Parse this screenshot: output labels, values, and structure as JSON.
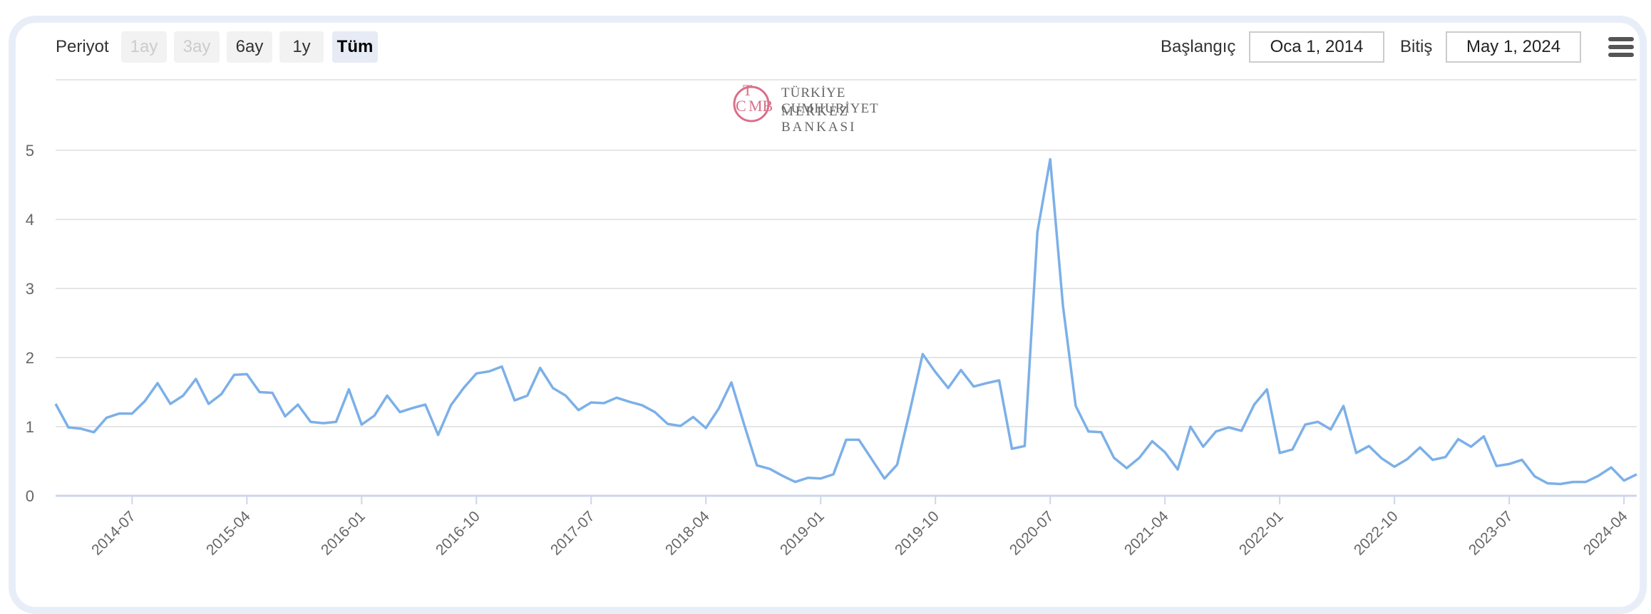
{
  "toolbar": {
    "period_label": "Periyot",
    "ranges": [
      {
        "label": "1ay",
        "state": "disabled"
      },
      {
        "label": "3ay",
        "state": "disabled"
      },
      {
        "label": "6ay",
        "state": "normal"
      },
      {
        "label": "1y",
        "state": "normal"
      },
      {
        "label": "Tüm",
        "state": "active"
      }
    ],
    "start_label": "Başlangıç",
    "start_value": "Oca 1, 2014",
    "end_label": "Bitiş",
    "end_value": "May 1, 2024",
    "menu_icon": "hamburger-menu-icon"
  },
  "logo": {
    "line1": "TÜRKİYE CUMHURİYET",
    "line2": "MERKEZ BANKASI",
    "emblem": "TCMB",
    "color": "#d9708a"
  },
  "colors": {
    "line": "#7cb0e8",
    "grid": "#e6e6e6",
    "axis": "#ccd6eb",
    "text": "#666666"
  },
  "chart_data": {
    "type": "line",
    "title": "",
    "xlabel": "",
    "ylabel": "",
    "ylim": [
      0,
      6
    ],
    "yticks": [
      0,
      1,
      2,
      3,
      4,
      5
    ],
    "xticks": [
      "2014-07",
      "2015-04",
      "2016-01",
      "2016-10",
      "2017-07",
      "2018-04",
      "2019-01",
      "2019-10",
      "2020-07",
      "2021-04",
      "2022-01",
      "2022-10",
      "2023-07",
      "2024-04"
    ],
    "grid": true,
    "legend": "none",
    "series": [
      {
        "x": [
          "2014-01",
          "2014-02",
          "2014-03",
          "2014-04",
          "2014-05",
          "2014-06",
          "2014-07",
          "2014-08",
          "2014-09",
          "2014-10",
          "2014-11",
          "2014-12",
          "2015-01",
          "2015-02",
          "2015-03",
          "2015-04",
          "2015-05",
          "2015-06",
          "2015-07",
          "2015-08",
          "2015-09",
          "2015-10",
          "2015-11",
          "2015-12",
          "2016-01",
          "2016-02",
          "2016-03",
          "2016-04",
          "2016-05",
          "2016-06",
          "2016-07",
          "2016-08",
          "2016-09",
          "2016-10",
          "2016-11",
          "2016-12",
          "2017-01",
          "2017-02",
          "2017-03",
          "2017-04",
          "2017-05",
          "2017-06",
          "2017-07",
          "2017-08",
          "2017-09",
          "2017-10",
          "2017-11",
          "2017-12",
          "2018-01",
          "2018-02",
          "2018-03",
          "2018-04",
          "2018-05",
          "2018-06",
          "2018-07",
          "2018-08",
          "2018-09",
          "2018-10",
          "2018-11",
          "2018-12",
          "2019-01",
          "2019-02",
          "2019-03",
          "2019-04",
          "2019-05",
          "2019-06",
          "2019-07",
          "2019-08",
          "2019-09",
          "2019-10",
          "2019-11",
          "2019-12",
          "2020-01",
          "2020-02",
          "2020-03",
          "2020-04",
          "2020-05",
          "2020-06",
          "2020-07",
          "2020-08",
          "2020-09",
          "2020-10",
          "2020-11",
          "2020-12",
          "2021-01",
          "2021-02",
          "2021-03",
          "2021-04",
          "2021-05",
          "2021-06",
          "2021-07",
          "2021-08",
          "2021-09",
          "2021-10",
          "2021-11",
          "2021-12",
          "2022-01",
          "2022-02",
          "2022-03",
          "2022-04",
          "2022-05",
          "2022-06",
          "2022-07",
          "2022-08",
          "2022-09",
          "2022-10",
          "2022-11",
          "2022-12",
          "2023-01",
          "2023-02",
          "2023-03",
          "2023-04",
          "2023-05",
          "2023-06",
          "2023-07",
          "2023-08",
          "2023-09",
          "2023-10",
          "2023-11",
          "2023-12",
          "2024-01",
          "2024-02",
          "2024-03",
          "2024-04",
          "2024-05"
        ],
        "values": [
          1.33,
          0.99,
          0.97,
          0.92,
          1.13,
          1.19,
          1.19,
          1.37,
          1.63,
          1.33,
          1.45,
          1.69,
          1.33,
          1.47,
          1.75,
          1.76,
          1.5,
          1.49,
          1.15,
          1.32,
          1.07,
          1.05,
          1.07,
          1.54,
          1.03,
          1.16,
          1.45,
          1.21,
          1.27,
          1.32,
          0.88,
          1.31,
          1.56,
          1.77,
          1.8,
          1.87,
          1.38,
          1.45,
          1.85,
          1.56,
          1.45,
          1.24,
          1.35,
          1.34,
          1.42,
          1.36,
          1.31,
          1.21,
          1.04,
          1.01,
          1.14,
          0.98,
          1.26,
          1.64,
          1.03,
          0.44,
          0.39,
          0.29,
          0.2,
          0.26,
          0.25,
          0.31,
          0.81,
          0.81,
          0.53,
          0.25,
          0.45,
          1.23,
          2.05,
          1.79,
          1.56,
          1.82,
          1.58,
          1.63,
          1.67,
          0.68,
          0.72,
          3.82,
          4.87,
          2.75,
          1.3,
          0.93,
          0.92,
          0.55,
          0.4,
          0.55,
          0.79,
          0.63,
          0.38,
          1.0,
          0.71,
          0.93,
          0.99,
          0.94,
          1.32,
          1.54,
          0.62,
          0.67,
          1.03,
          1.07,
          0.96,
          1.3,
          0.62,
          0.72,
          0.54,
          0.42,
          0.53,
          0.7,
          0.52,
          0.56,
          0.82,
          0.71,
          0.86,
          0.43,
          0.46,
          0.52,
          0.28,
          0.18,
          0.17,
          0.2,
          0.2,
          0.29,
          0.41,
          0.22,
          0.31
        ]
      }
    ]
  }
}
